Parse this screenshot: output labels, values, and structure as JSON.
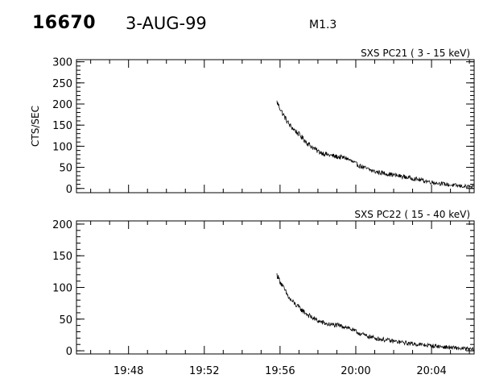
{
  "header": {
    "event_id": "16670",
    "date": "3-AUG-99",
    "flare_class": "M1.3"
  },
  "chart_data": [
    {
      "type": "line",
      "panel_label": "SXS PC21  (  3 - 15 keV)",
      "ylabel": "CTS/SEC",
      "xlabel": "",
      "xlim": [
        "19:45:15",
        "20:06:15"
      ],
      "ylim": [
        -10,
        305
      ],
      "yticks": [
        0,
        50,
        100,
        150,
        200,
        250,
        300
      ],
      "xticks": [
        "19:48",
        "19:52",
        "19:56",
        "20:00",
        "20:04"
      ],
      "show_xtick_labels": false,
      "data_start": "19:55:50",
      "series": [
        {
          "x": [
            "19:55:50",
            "19:56:10",
            "19:56:30",
            "19:57:00",
            "19:57:30",
            "19:58:00",
            "19:58:30",
            "19:59:00",
            "19:59:30",
            "20:00:00",
            "20:00:30",
            "20:01:00",
            "20:02:00",
            "20:03:00",
            "20:04:00",
            "20:05:00",
            "20:06:15"
          ],
          "y": [
            205,
            175,
            150,
            128,
            105,
            88,
            80,
            75,
            72,
            58,
            48,
            40,
            32,
            24,
            15,
            8,
            3
          ]
        }
      ]
    },
    {
      "type": "line",
      "panel_label": "SXS PC22  ( 15 - 40 keV)",
      "ylabel": "",
      "xlabel": "",
      "xlim": [
        "19:45:15",
        "20:06:15"
      ],
      "ylim": [
        -5,
        205
      ],
      "yticks": [
        0,
        50,
        100,
        150,
        200
      ],
      "xticks": [
        "19:48",
        "19:52",
        "19:56",
        "20:00",
        "20:04"
      ],
      "show_xtick_labels": true,
      "data_start": "19:55:50",
      "series": [
        {
          "x": [
            "19:55:50",
            "19:56:10",
            "19:56:30",
            "19:57:00",
            "19:57:30",
            "19:58:00",
            "19:58:30",
            "19:59:00",
            "19:59:30",
            "20:00:00",
            "20:00:30",
            "20:01:00",
            "20:02:00",
            "20:03:00",
            "20:04:00",
            "20:05:00",
            "20:06:15"
          ],
          "y": [
            120,
            100,
            82,
            68,
            56,
            47,
            42,
            40,
            38,
            30,
            24,
            20,
            15,
            11,
            8,
            5,
            2
          ]
        }
      ]
    }
  ]
}
